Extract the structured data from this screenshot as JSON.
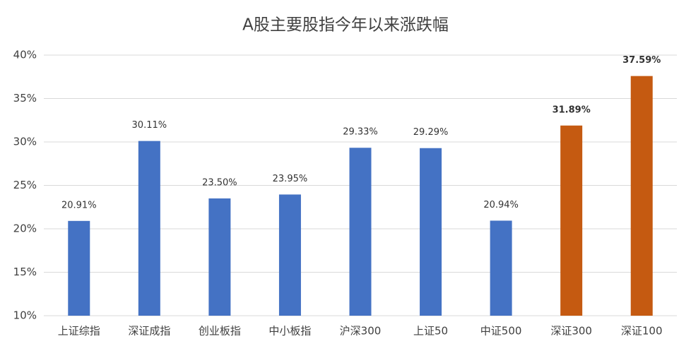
{
  "chart_data": {
    "type": "bar",
    "title": "A股主要股指今年以来涨跌幅",
    "categories": [
      "上证综指",
      "深证成指",
      "创业板指",
      "中小板指",
      "沪深300",
      "上证50",
      "中证500",
      "深证300",
      "深证100"
    ],
    "values": [
      20.91,
      30.11,
      23.5,
      23.95,
      29.33,
      29.29,
      20.94,
      31.89,
      37.59
    ],
    "value_labels": [
      "20.91%",
      "30.11%",
      "23.50%",
      "23.95%",
      "29.33%",
      "29.29%",
      "20.94%",
      "31.89%",
      "37.59%"
    ],
    "colors": [
      "#4472c4",
      "#4472c4",
      "#4472c4",
      "#4472c4",
      "#4472c4",
      "#4472c4",
      "#4472c4",
      "#c55a11",
      "#c55a11"
    ],
    "value_label_bold": [
      false,
      false,
      false,
      false,
      false,
      false,
      false,
      true,
      true
    ],
    "ylim": [
      10,
      40
    ],
    "yticks": [
      {
        "value": 10,
        "label": "10%"
      },
      {
        "value": 15,
        "label": "15%"
      },
      {
        "value": 20,
        "label": "20%"
      },
      {
        "value": 25,
        "label": "25%"
      },
      {
        "value": 30,
        "label": "30%"
      },
      {
        "value": 35,
        "label": "35%"
      },
      {
        "value": 40,
        "label": "40%"
      }
    ],
    "grid": true
  }
}
